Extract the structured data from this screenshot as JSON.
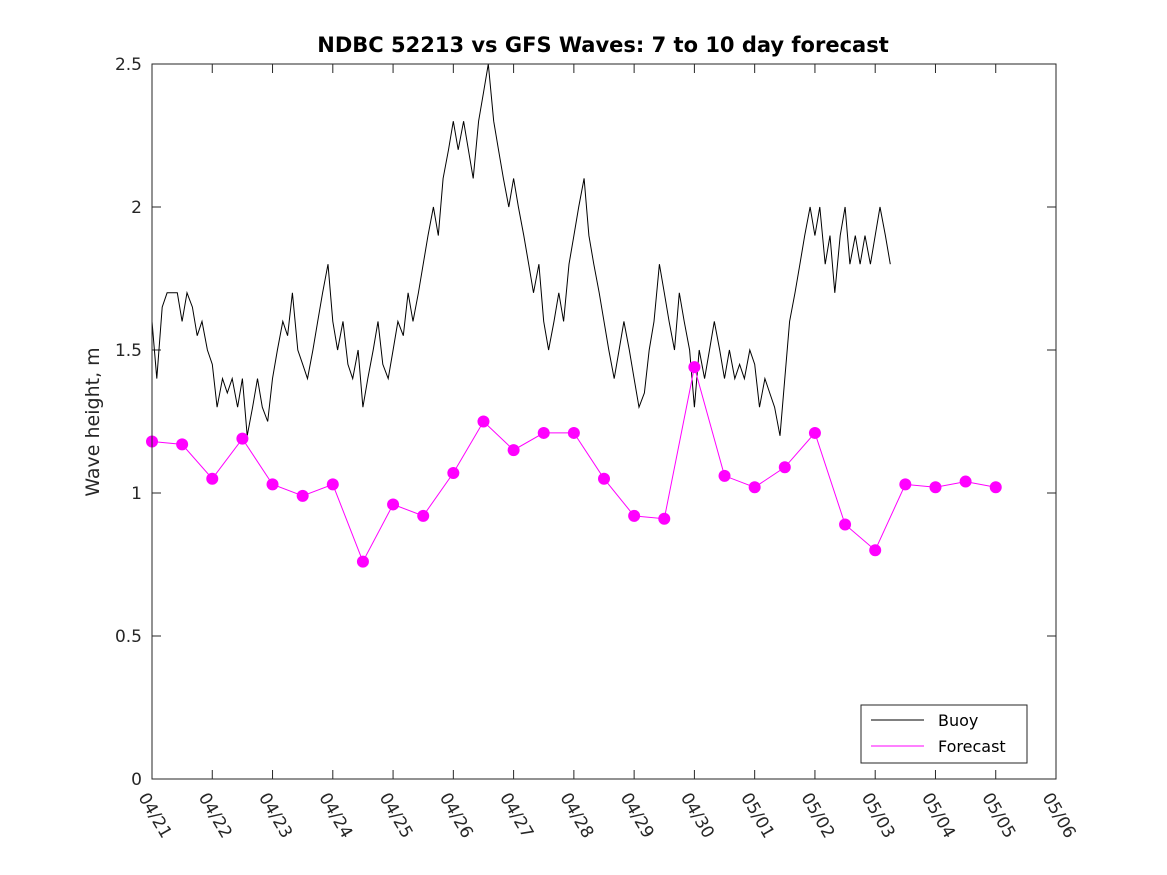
{
  "chart_data": {
    "type": "line",
    "title": "NDBC 52213 vs GFS Waves: 7 to 10 day forecast",
    "ylabel": "Wave height, m",
    "xlabel": "",
    "xlim": [
      0,
      15
    ],
    "ylim": [
      0,
      2.5
    ],
    "yticks": [
      0,
      0.5,
      1,
      1.5,
      2,
      2.5
    ],
    "ytick_labels": [
      "0",
      "0.5",
      "1",
      "1.5",
      "2",
      "2.5"
    ],
    "xticks": [
      0,
      1,
      2,
      3,
      4,
      5,
      6,
      7,
      8,
      9,
      10,
      11,
      12,
      13,
      14,
      15
    ],
    "xtick_labels": [
      "04/21",
      "04/22",
      "04/23",
      "04/24",
      "04/25",
      "04/26",
      "04/27",
      "04/28",
      "04/29",
      "04/30",
      "05/01",
      "05/02",
      "05/03",
      "05/04",
      "05/05",
      "05/06"
    ],
    "legend": {
      "placement": "bottom-right",
      "entries": [
        {
          "label": "Buoy",
          "color": "#000000"
        },
        {
          "label": "Forecast",
          "color": "#ff00ff"
        }
      ]
    },
    "colors": {
      "buoy": "#000000",
      "forecast": "#ff00ff"
    },
    "series": [
      {
        "name": "Buoy",
        "x": [
          0,
          0.08,
          0.17,
          0.25,
          0.33,
          0.42,
          0.5,
          0.58,
          0.67,
          0.75,
          0.83,
          0.92,
          1.0,
          1.08,
          1.17,
          1.25,
          1.33,
          1.42,
          1.5,
          1.58,
          1.67,
          1.75,
          1.83,
          1.92,
          2.0,
          2.08,
          2.17,
          2.25,
          2.33,
          2.42,
          2.5,
          2.58,
          2.67,
          2.75,
          2.83,
          2.92,
          3.0,
          3.08,
          3.17,
          3.25,
          3.33,
          3.42,
          3.5,
          3.58,
          3.67,
          3.75,
          3.83,
          3.92,
          4.0,
          4.08,
          4.17,
          4.25,
          4.33,
          4.42,
          4.5,
          4.58,
          4.67,
          4.75,
          4.83,
          4.92,
          5.0,
          5.08,
          5.17,
          5.25,
          5.33,
          5.42,
          5.5,
          5.58,
          5.67,
          5.75,
          5.83,
          5.92,
          6.0,
          6.08,
          6.17,
          6.25,
          6.33,
          6.42,
          6.5,
          6.58,
          6.67,
          6.75,
          6.83,
          6.92,
          7.0,
          7.08,
          7.17,
          7.25,
          7.33,
          7.42,
          7.5,
          7.58,
          7.67,
          7.75,
          7.83,
          7.92,
          8.0,
          8.08,
          8.17,
          8.25,
          8.33,
          8.42,
          8.5,
          8.58,
          8.67,
          8.75,
          8.83,
          8.92,
          9.0,
          9.08,
          9.17,
          9.25,
          9.33,
          9.42,
          9.5,
          9.58,
          9.67,
          9.75,
          9.83,
          9.92,
          10.0,
          10.08,
          10.17,
          10.25,
          10.33,
          10.42,
          10.5,
          10.58,
          10.67,
          10.75,
          10.83,
          10.92,
          11.0,
          11.08,
          11.17,
          11.25,
          11.33,
          11.42,
          11.5,
          11.58,
          11.67,
          11.75,
          11.83,
          11.92,
          12.0,
          12.08,
          12.17,
          12.25,
          12.33,
          12.42,
          12.5,
          12.58,
          12.67,
          12.75,
          12.83,
          12.92,
          13.0,
          13.08,
          13.17,
          13.25,
          13.33,
          13.42,
          13.5,
          13.58,
          13.67,
          13.75,
          13.83,
          13.92,
          14.0,
          14.08,
          14.17,
          14.25,
          14.33,
          14.42,
          14.5,
          14.58,
          14.67,
          14.75,
          14.83,
          14.92,
          15.0
        ],
        "values": [
          1.6,
          1.4,
          1.65,
          1.7,
          1.7,
          1.7,
          1.6,
          1.7,
          1.65,
          1.55,
          1.6,
          1.5,
          1.45,
          1.3,
          1.4,
          1.35,
          1.4,
          1.3,
          1.4,
          1.2,
          1.3,
          1.4,
          1.3,
          1.25,
          1.4,
          1.5,
          1.6,
          1.55,
          1.7,
          1.5,
          1.45,
          1.4,
          1.5,
          1.6,
          1.7,
          1.8,
          1.6,
          1.5,
          1.6,
          1.45,
          1.4,
          1.5,
          1.3,
          1.4,
          1.5,
          1.6,
          1.45,
          1.4,
          1.5,
          1.6,
          1.55,
          1.7,
          1.6,
          1.7,
          1.8,
          1.9,
          2.0,
          1.9,
          2.1,
          2.2,
          2.3,
          2.2,
          2.3,
          2.2,
          2.1,
          2.3,
          2.4,
          2.5,
          2.3,
          2.2,
          2.1,
          2.0,
          2.1,
          2.0,
          1.9,
          1.8,
          1.7,
          1.8,
          1.6,
          1.5,
          1.6,
          1.7,
          1.6,
          1.8,
          1.9,
          2.0,
          2.1,
          1.9,
          1.8,
          1.7,
          1.6,
          1.5,
          1.4,
          1.5,
          1.6,
          1.5,
          1.4,
          1.3,
          1.35,
          1.5,
          1.6,
          1.8,
          1.7,
          1.6,
          1.5,
          1.7,
          1.6,
          1.5,
          1.3,
          1.5,
          1.4,
          1.5,
          1.6,
          1.5,
          1.4,
          1.5,
          1.4,
          1.45,
          1.4,
          1.5,
          1.45,
          1.3,
          1.4,
          1.35,
          1.3,
          1.2,
          1.4,
          1.6,
          1.7,
          1.8,
          1.9,
          2.0,
          1.9,
          2.0,
          1.8,
          1.9,
          1.7,
          1.9,
          2.0,
          1.8,
          1.9,
          1.8,
          1.9,
          1.8,
          1.9,
          2.0,
          1.9,
          1.8,
          null,
          null,
          null,
          null,
          null,
          null,
          null,
          null,
          null,
          null,
          null,
          null,
          null,
          null,
          null,
          null,
          null,
          null,
          null,
          null,
          null,
          null,
          null,
          null,
          null,
          null,
          null,
          null,
          null,
          null,
          null,
          null,
          null
        ]
      },
      {
        "name": "Forecast",
        "x": [
          0,
          0.5,
          1,
          1.5,
          2,
          2.5,
          3,
          3.5,
          4,
          4.5,
          5,
          5.5,
          6,
          6.5,
          7,
          7.5,
          8,
          8.5,
          9,
          9.5,
          10,
          10.5,
          11,
          11.5,
          12,
          12.5,
          13,
          13.5,
          14,
          14.5,
          15
        ],
        "values": [
          1.18,
          1.17,
          1.05,
          1.19,
          1.03,
          0.99,
          1.03,
          0.76,
          0.96,
          0.92,
          1.07,
          1.25,
          1.15,
          1.21,
          1.21,
          1.05,
          0.92,
          0.91,
          1.44,
          1.06,
          1.02,
          1.09,
          1.21,
          0.89,
          0.8,
          1.03,
          1.02,
          1.04,
          1.02,
          null,
          null
        ]
      }
    ]
  }
}
